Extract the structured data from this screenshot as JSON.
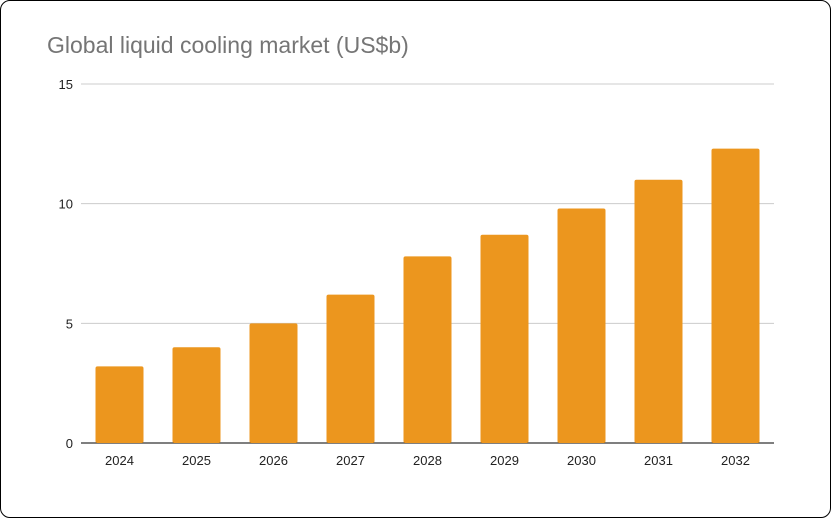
{
  "chart_data": {
    "type": "bar",
    "title": "Global liquid cooling market (US$b)",
    "xlabel": "",
    "ylabel": "",
    "categories": [
      "2024",
      "2025",
      "2026",
      "2027",
      "2028",
      "2029",
      "2030",
      "2031",
      "2032"
    ],
    "values": [
      3.2,
      4.0,
      5.0,
      6.2,
      7.8,
      8.7,
      9.8,
      11.0,
      12.3
    ],
    "ylim": [
      0,
      15
    ],
    "yticks": [
      0,
      5,
      10,
      15
    ],
    "grid": true,
    "legend": "none",
    "colors": {
      "bar": "#EC961E",
      "grid": "#CCCCCC",
      "axis": "#333333"
    }
  }
}
